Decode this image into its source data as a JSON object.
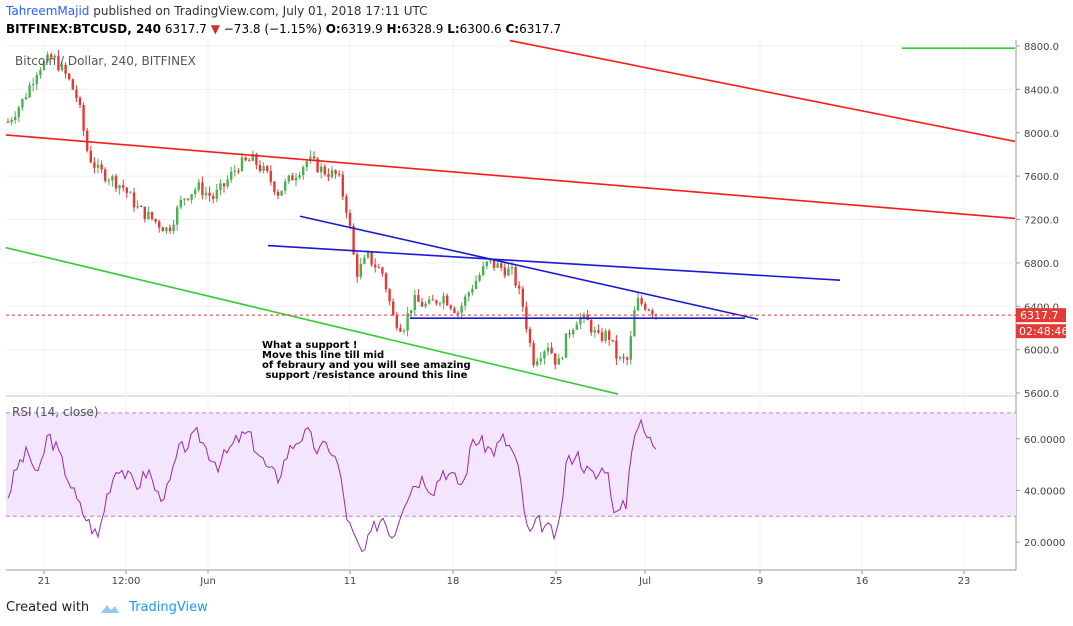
{
  "header": {
    "author": "TahreemMajid",
    "published": "published on TradingView.com, July 01, 2018 17:11 UTC",
    "symbol": "BITFINEX:BTCUSD, 240",
    "last": "6317.7",
    "change": "−73.8 (−1.15%)",
    "o_label": "O:",
    "o": "6319.9",
    "h_label": "H:",
    "h": "6328.9",
    "l_label": "L:",
    "l": "6300.6",
    "c_label": "C:",
    "c": "6317.7"
  },
  "pane_title": "Bitcoin / Dollar, 240, BITFINEX",
  "rsi_title": "RSI (14, close)",
  "price_tag": "6317.7",
  "countdown": "02:48:46",
  "annotation": [
    "What a support !",
    "Move this line till mid",
    "of febraury and you will see amazing",
    " support /resistance around this line"
  ],
  "footer": {
    "created": "Created with",
    "brand": "TradingView"
  },
  "colors": {
    "up": "#4caf50",
    "down": "#e53935",
    "red_line": "#ff1a1a",
    "blue_line": "#1a1ad6",
    "green_line": "#33cc33",
    "rsi_line": "#9c27b0",
    "rsi_band": "#f3e5fb",
    "dashed": "#e53935"
  },
  "chart_data": [
    {
      "type": "candlestick",
      "title": "Bitcoin / Dollar, 240, BITFINEX",
      "ylim": [
        5600,
        8800
      ],
      "yticks": [
        "8800.0",
        "8400.0",
        "8000.0",
        "7600.0",
        "7200.0",
        "6800.0",
        "6400.0",
        "6000.0",
        "5600.0"
      ],
      "xticks": [
        "21",
        "12:00",
        "Jun",
        "11",
        "18",
        "25",
        "Jul",
        "9",
        "16",
        "23"
      ],
      "last_price": 6317.7,
      "close_path": [
        [
          0,
          8100
        ],
        [
          15,
          8300
        ],
        [
          30,
          8600
        ],
        [
          45,
          8700
        ],
        [
          60,
          8500
        ],
        [
          70,
          8300
        ],
        [
          80,
          7800
        ],
        [
          90,
          7650
        ],
        [
          100,
          7600
        ],
        [
          115,
          7500
        ],
        [
          130,
          7300
        ],
        [
          145,
          7200
        ],
        [
          160,
          7100
        ],
        [
          175,
          7400
        ],
        [
          190,
          7500
        ],
        [
          205,
          7400
        ],
        [
          215,
          7500
        ],
        [
          230,
          7700
        ],
        [
          245,
          7750
        ],
        [
          260,
          7600
        ],
        [
          270,
          7450
        ],
        [
          285,
          7600
        ],
        [
          300,
          7750
        ],
        [
          315,
          7650
        ],
        [
          330,
          7600
        ],
        [
          340,
          7250
        ],
        [
          348,
          6700
        ],
        [
          360,
          6850
        ],
        [
          375,
          6700
        ],
        [
          385,
          6300
        ],
        [
          395,
          6200
        ],
        [
          405,
          6450
        ],
        [
          420,
          6400
        ],
        [
          435,
          6500
        ],
        [
          450,
          6350
        ],
        [
          465,
          6600
        ],
        [
          480,
          6800
        ],
        [
          495,
          6750
        ],
        [
          505,
          6700
        ],
        [
          515,
          6400
        ],
        [
          525,
          5900
        ],
        [
          540,
          6050
        ],
        [
          550,
          5850
        ],
        [
          560,
          6150
        ],
        [
          570,
          6300
        ],
        [
          580,
          6250
        ],
        [
          590,
          6100
        ],
        [
          600,
          6150
        ],
        [
          610,
          5900
        ],
        [
          620,
          5900
        ],
        [
          628,
          6450
        ],
        [
          640,
          6400
        ],
        [
          650,
          6318
        ]
      ],
      "trendlines": [
        {
          "color": "red",
          "from": [
            510,
            8850
          ],
          "to": [
            1015,
            7920
          ]
        },
        {
          "color": "red",
          "from": [
            6,
            7980
          ],
          "to": [
            1015,
            7210
          ]
        },
        {
          "color": "blue",
          "from": [
            300,
            7230
          ],
          "to": [
            758,
            6280
          ]
        },
        {
          "color": "blue",
          "from": [
            268,
            6960
          ],
          "to": [
            840,
            6640
          ]
        },
        {
          "color": "blue",
          "from": [
            410,
            6290
          ],
          "to": [
            745,
            6290
          ]
        },
        {
          "color": "green",
          "from": [
            6,
            6940
          ],
          "to": [
            618,
            5590
          ]
        },
        {
          "color": "green",
          "from": [
            902,
            8780
          ],
          "to": [
            1015,
            8780
          ]
        }
      ]
    },
    {
      "type": "line",
      "title": "RSI (14, close)",
      "ylim": [
        10,
        75
      ],
      "yticks": [
        "60.0000",
        "40.0000",
        "20.0000"
      ],
      "bands": [
        30,
        70
      ],
      "series": [
        {
          "values": [
            [
              0,
              38
            ],
            [
              10,
              50
            ],
            [
              20,
              55
            ],
            [
              30,
              45
            ],
            [
              40,
              62
            ],
            [
              50,
              55
            ],
            [
              60,
              45
            ],
            [
              70,
              35
            ],
            [
              80,
              28
            ],
            [
              90,
              22
            ],
            [
              100,
              40
            ],
            [
              110,
              50
            ],
            [
              120,
              45
            ],
            [
              130,
              42
            ],
            [
              140,
              48
            ],
            [
              150,
              38
            ],
            [
              160,
              40
            ],
            [
              170,
              55
            ],
            [
              180,
              58
            ],
            [
              190,
              62
            ],
            [
              200,
              55
            ],
            [
              210,
              50
            ],
            [
              220,
              55
            ],
            [
              230,
              60
            ],
            [
              240,
              62
            ],
            [
              250,
              55
            ],
            [
              260,
              48
            ],
            [
              270,
              45
            ],
            [
              280,
              55
            ],
            [
              290,
              60
            ],
            [
              300,
              62
            ],
            [
              310,
              55
            ],
            [
              320,
              58
            ],
            [
              330,
              50
            ],
            [
              340,
              28
            ],
            [
              348,
              20
            ],
            [
              355,
              15
            ],
            [
              365,
              25
            ],
            [
              375,
              30
            ],
            [
              385,
              22
            ],
            [
              395,
              35
            ],
            [
              405,
              42
            ],
            [
              415,
              45
            ],
            [
              425,
              40
            ],
            [
              435,
              48
            ],
            [
              445,
              45
            ],
            [
              455,
              42
            ],
            [
              465,
              60
            ],
            [
              475,
              58
            ],
            [
              485,
              55
            ],
            [
              495,
              60
            ],
            [
              505,
              55
            ],
            [
              512,
              45
            ],
            [
              520,
              22
            ],
            [
              530,
              28
            ],
            [
              540,
              25
            ],
            [
              550,
              22
            ],
            [
              558,
              50
            ],
            [
              568,
              55
            ],
            [
              578,
              48
            ],
            [
              588,
              45
            ],
            [
              598,
              50
            ],
            [
              608,
              30
            ],
            [
              618,
              35
            ],
            [
              625,
              62
            ],
            [
              632,
              66
            ],
            [
              640,
              60
            ],
            [
              650,
              57
            ]
          ]
        }
      ]
    }
  ]
}
